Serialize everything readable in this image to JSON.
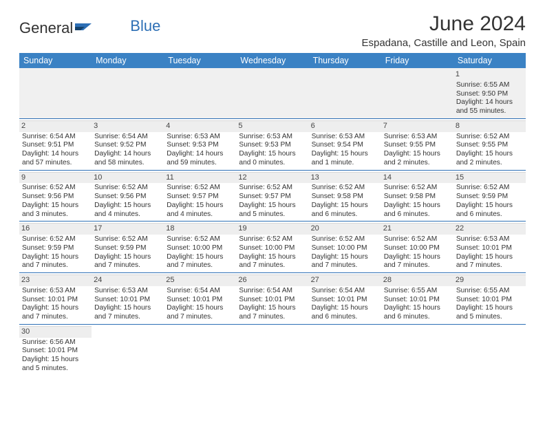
{
  "brand": {
    "word1": "General",
    "word2": "Blue"
  },
  "title": "June 2024",
  "location": "Espadana, Castille and Leon, Spain",
  "dayHeaders": [
    "Sunday",
    "Monday",
    "Tuesday",
    "Wednesday",
    "Thursday",
    "Friday",
    "Saturday"
  ],
  "colors": {
    "headerBg": "#3b82c4",
    "headerText": "#ffffff",
    "rowBorder": "#2d6fb5",
    "firstWeekBg": "#f0f0f0",
    "dayNumBg": "#eeeeee"
  },
  "weeks": [
    [
      null,
      null,
      null,
      null,
      null,
      null,
      {
        "num": "1",
        "sunrise": "Sunrise: 6:55 AM",
        "sunset": "Sunset: 9:50 PM",
        "daylight": "Daylight: 14 hours and 55 minutes."
      }
    ],
    [
      {
        "num": "2",
        "sunrise": "Sunrise: 6:54 AM",
        "sunset": "Sunset: 9:51 PM",
        "daylight": "Daylight: 14 hours and 57 minutes."
      },
      {
        "num": "3",
        "sunrise": "Sunrise: 6:54 AM",
        "sunset": "Sunset: 9:52 PM",
        "daylight": "Daylight: 14 hours and 58 minutes."
      },
      {
        "num": "4",
        "sunrise": "Sunrise: 6:53 AM",
        "sunset": "Sunset: 9:53 PM",
        "daylight": "Daylight: 14 hours and 59 minutes."
      },
      {
        "num": "5",
        "sunrise": "Sunrise: 6:53 AM",
        "sunset": "Sunset: 9:53 PM",
        "daylight": "Daylight: 15 hours and 0 minutes."
      },
      {
        "num": "6",
        "sunrise": "Sunrise: 6:53 AM",
        "sunset": "Sunset: 9:54 PM",
        "daylight": "Daylight: 15 hours and 1 minute."
      },
      {
        "num": "7",
        "sunrise": "Sunrise: 6:53 AM",
        "sunset": "Sunset: 9:55 PM",
        "daylight": "Daylight: 15 hours and 2 minutes."
      },
      {
        "num": "8",
        "sunrise": "Sunrise: 6:52 AM",
        "sunset": "Sunset: 9:55 PM",
        "daylight": "Daylight: 15 hours and 2 minutes."
      }
    ],
    [
      {
        "num": "9",
        "sunrise": "Sunrise: 6:52 AM",
        "sunset": "Sunset: 9:56 PM",
        "daylight": "Daylight: 15 hours and 3 minutes."
      },
      {
        "num": "10",
        "sunrise": "Sunrise: 6:52 AM",
        "sunset": "Sunset: 9:56 PM",
        "daylight": "Daylight: 15 hours and 4 minutes."
      },
      {
        "num": "11",
        "sunrise": "Sunrise: 6:52 AM",
        "sunset": "Sunset: 9:57 PM",
        "daylight": "Daylight: 15 hours and 4 minutes."
      },
      {
        "num": "12",
        "sunrise": "Sunrise: 6:52 AM",
        "sunset": "Sunset: 9:57 PM",
        "daylight": "Daylight: 15 hours and 5 minutes."
      },
      {
        "num": "13",
        "sunrise": "Sunrise: 6:52 AM",
        "sunset": "Sunset: 9:58 PM",
        "daylight": "Daylight: 15 hours and 6 minutes."
      },
      {
        "num": "14",
        "sunrise": "Sunrise: 6:52 AM",
        "sunset": "Sunset: 9:58 PM",
        "daylight": "Daylight: 15 hours and 6 minutes."
      },
      {
        "num": "15",
        "sunrise": "Sunrise: 6:52 AM",
        "sunset": "Sunset: 9:59 PM",
        "daylight": "Daylight: 15 hours and 6 minutes."
      }
    ],
    [
      {
        "num": "16",
        "sunrise": "Sunrise: 6:52 AM",
        "sunset": "Sunset: 9:59 PM",
        "daylight": "Daylight: 15 hours and 7 minutes."
      },
      {
        "num": "17",
        "sunrise": "Sunrise: 6:52 AM",
        "sunset": "Sunset: 9:59 PM",
        "daylight": "Daylight: 15 hours and 7 minutes."
      },
      {
        "num": "18",
        "sunrise": "Sunrise: 6:52 AM",
        "sunset": "Sunset: 10:00 PM",
        "daylight": "Daylight: 15 hours and 7 minutes."
      },
      {
        "num": "19",
        "sunrise": "Sunrise: 6:52 AM",
        "sunset": "Sunset: 10:00 PM",
        "daylight": "Daylight: 15 hours and 7 minutes."
      },
      {
        "num": "20",
        "sunrise": "Sunrise: 6:52 AM",
        "sunset": "Sunset: 10:00 PM",
        "daylight": "Daylight: 15 hours and 7 minutes."
      },
      {
        "num": "21",
        "sunrise": "Sunrise: 6:52 AM",
        "sunset": "Sunset: 10:00 PM",
        "daylight": "Daylight: 15 hours and 7 minutes."
      },
      {
        "num": "22",
        "sunrise": "Sunrise: 6:53 AM",
        "sunset": "Sunset: 10:01 PM",
        "daylight": "Daylight: 15 hours and 7 minutes."
      }
    ],
    [
      {
        "num": "23",
        "sunrise": "Sunrise: 6:53 AM",
        "sunset": "Sunset: 10:01 PM",
        "daylight": "Daylight: 15 hours and 7 minutes."
      },
      {
        "num": "24",
        "sunrise": "Sunrise: 6:53 AM",
        "sunset": "Sunset: 10:01 PM",
        "daylight": "Daylight: 15 hours and 7 minutes."
      },
      {
        "num": "25",
        "sunrise": "Sunrise: 6:54 AM",
        "sunset": "Sunset: 10:01 PM",
        "daylight": "Daylight: 15 hours and 7 minutes."
      },
      {
        "num": "26",
        "sunrise": "Sunrise: 6:54 AM",
        "sunset": "Sunset: 10:01 PM",
        "daylight": "Daylight: 15 hours and 7 minutes."
      },
      {
        "num": "27",
        "sunrise": "Sunrise: 6:54 AM",
        "sunset": "Sunset: 10:01 PM",
        "daylight": "Daylight: 15 hours and 6 minutes."
      },
      {
        "num": "28",
        "sunrise": "Sunrise: 6:55 AM",
        "sunset": "Sunset: 10:01 PM",
        "daylight": "Daylight: 15 hours and 6 minutes."
      },
      {
        "num": "29",
        "sunrise": "Sunrise: 6:55 AM",
        "sunset": "Sunset: 10:01 PM",
        "daylight": "Daylight: 15 hours and 5 minutes."
      }
    ],
    [
      {
        "num": "30",
        "sunrise": "Sunrise: 6:56 AM",
        "sunset": "Sunset: 10:01 PM",
        "daylight": "Daylight: 15 hours and 5 minutes."
      },
      null,
      null,
      null,
      null,
      null,
      null
    ]
  ]
}
